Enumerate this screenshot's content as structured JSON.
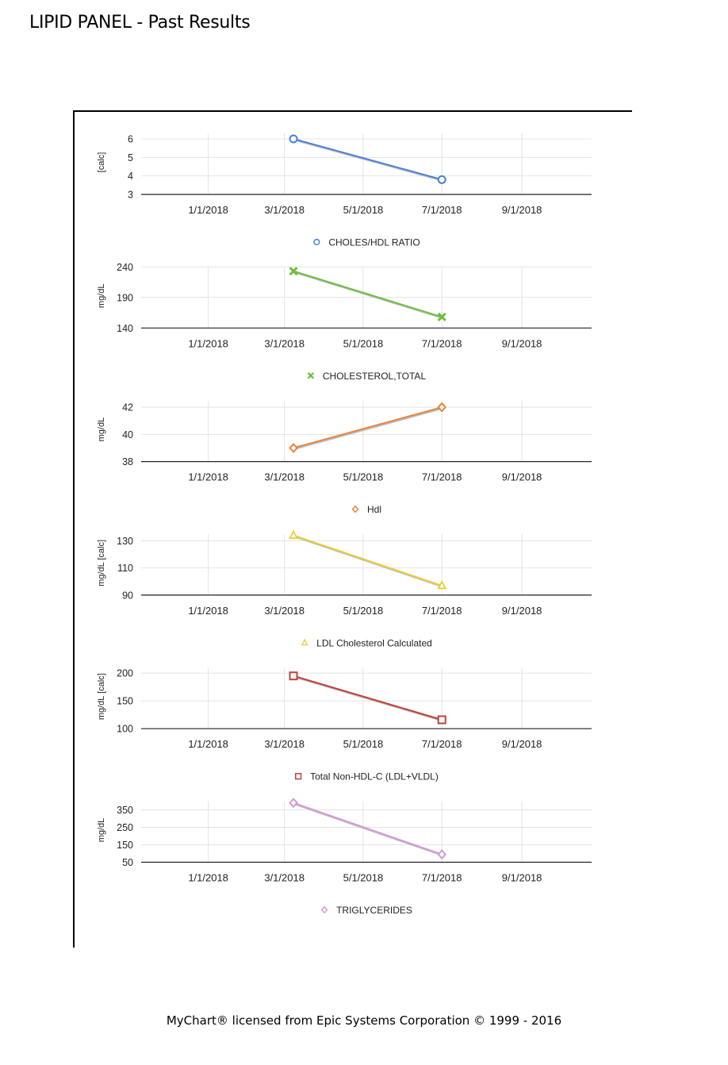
{
  "header": {
    "title": "LIPID PANEL - Past Results"
  },
  "footer": {
    "text": "MyChart® licensed from Epic Systems Corporation © 1999 - 2016"
  },
  "chart_data": [
    {
      "type": "line",
      "ylabel": "[calc]",
      "yticks": [
        3,
        4,
        5,
        6
      ],
      "ylim": [
        3,
        6.3
      ],
      "xticks": [
        "1/1/2018",
        "3/1/2018",
        "5/1/2018",
        "7/1/2018",
        "9/1/2018"
      ],
      "xlim": [
        "2017-11-10",
        "2018-10-25"
      ],
      "grid": true,
      "legend_position": "bottom",
      "series": [
        {
          "name": "CHOLES/HDL RATIO",
          "color": "#4a7fdc",
          "marker": "circle",
          "x": [
            "2018-03-08",
            "2018-07-01"
          ],
          "y": [
            6.0,
            3.8
          ]
        }
      ]
    },
    {
      "type": "line",
      "ylabel": "mg/dL",
      "yticks": [
        140,
        190,
        240
      ],
      "ylim": [
        140,
        240
      ],
      "xticks": [
        "1/1/2018",
        "3/1/2018",
        "5/1/2018",
        "7/1/2018",
        "9/1/2018"
      ],
      "xlim": [
        "2017-11-10",
        "2018-10-25"
      ],
      "grid": true,
      "legend_position": "bottom",
      "series": [
        {
          "name": "CHOLESTEROL,TOTAL",
          "color": "#6cbf3c",
          "marker": "x",
          "x": [
            "2018-03-08",
            "2018-07-01"
          ],
          "y": [
            233,
            158
          ]
        }
      ]
    },
    {
      "type": "line",
      "ylabel": "mg/dL",
      "yticks": [
        38,
        40,
        42
      ],
      "ylim": [
        38,
        42.5
      ],
      "xticks": [
        "1/1/2018",
        "3/1/2018",
        "5/1/2018",
        "7/1/2018",
        "9/1/2018"
      ],
      "xlim": [
        "2017-11-10",
        "2018-10-25"
      ],
      "grid": true,
      "legend_position": "bottom",
      "series": [
        {
          "name": "Hdl",
          "color": "#e8823c",
          "marker": "diamond",
          "x": [
            "2018-03-08",
            "2018-07-01"
          ],
          "y": [
            39,
            42
          ]
        }
      ]
    },
    {
      "type": "line",
      "ylabel": "mg/dL [calc]",
      "yticks": [
        90,
        110,
        130
      ],
      "ylim": [
        90,
        135
      ],
      "xticks": [
        "1/1/2018",
        "3/1/2018",
        "5/1/2018",
        "7/1/2018",
        "9/1/2018"
      ],
      "xlim": [
        "2017-11-10",
        "2018-10-25"
      ],
      "grid": true,
      "legend_position": "bottom",
      "series": [
        {
          "name": "LDL Cholesterol Calculated",
          "color": "#e8cf3a",
          "marker": "triangle",
          "x": [
            "2018-03-08",
            "2018-07-01"
          ],
          "y": [
            134,
            97
          ]
        }
      ]
    },
    {
      "type": "line",
      "ylabel": "mg/dL [calc]",
      "yticks": [
        100,
        150,
        200
      ],
      "ylim": [
        100,
        210
      ],
      "xticks": [
        "1/1/2018",
        "3/1/2018",
        "5/1/2018",
        "7/1/2018",
        "9/1/2018"
      ],
      "xlim": [
        "2017-11-10",
        "2018-10-25"
      ],
      "grid": true,
      "legend_position": "bottom",
      "series": [
        {
          "name": "Total Non-HDL-C (LDL+VLDL)",
          "color": "#c0403a",
          "marker": "square",
          "x": [
            "2018-03-08",
            "2018-07-01"
          ],
          "y": [
            195,
            116
          ]
        }
      ]
    },
    {
      "type": "line",
      "ylabel": "mg/dL",
      "yticks": [
        50,
        150,
        250,
        350
      ],
      "ylim": [
        50,
        400
      ],
      "xticks": [
        "1/1/2018",
        "3/1/2018",
        "5/1/2018",
        "7/1/2018",
        "9/1/2018"
      ],
      "xlim": [
        "2017-11-10",
        "2018-10-25"
      ],
      "grid": true,
      "legend_position": "bottom",
      "series": [
        {
          "name": "TRIGLYCERIDES",
          "color": "#d49ad8",
          "marker": "diamond",
          "x": [
            "2018-03-08",
            "2018-07-01"
          ],
          "y": [
            390,
            95
          ]
        }
      ]
    }
  ]
}
